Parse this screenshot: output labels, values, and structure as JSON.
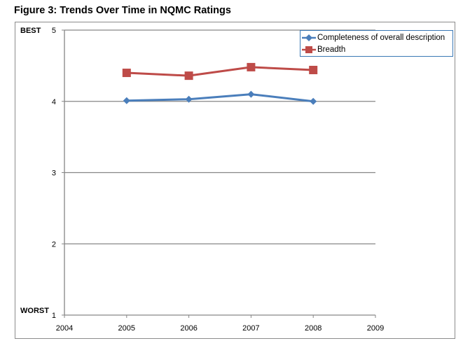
{
  "figure_title": "Figure 3: Trends Over Time in NQMC Ratings",
  "chart_data": {
    "type": "line",
    "title": "Figure 3: Trends Over Time in NQMC Ratings",
    "xlabel": "",
    "ylabel": "",
    "x_ticks": [
      "2004",
      "2005",
      "2006",
      "2007",
      "2008",
      "2009"
    ],
    "y_ticks": [
      "1",
      "2",
      "3",
      "4",
      "5"
    ],
    "xlim": [
      2004,
      2009
    ],
    "ylim": [
      1,
      5
    ],
    "y_end_labels": {
      "top": "BEST",
      "bottom": "WORST"
    },
    "grid": "horizontal",
    "legend_position": "top-right",
    "series": [
      {
        "name": "Completeness of overall description",
        "color": "#4a7ebb",
        "marker": "diamond",
        "x": [
          2005,
          2006,
          2007,
          2008
        ],
        "values": [
          4.01,
          4.03,
          4.1,
          4.0
        ]
      },
      {
        "name": "Breadth",
        "color": "#be4b48",
        "marker": "square",
        "x": [
          2005,
          2006,
          2007,
          2008
        ],
        "values": [
          4.4,
          4.36,
          4.48,
          4.44
        ]
      }
    ]
  }
}
